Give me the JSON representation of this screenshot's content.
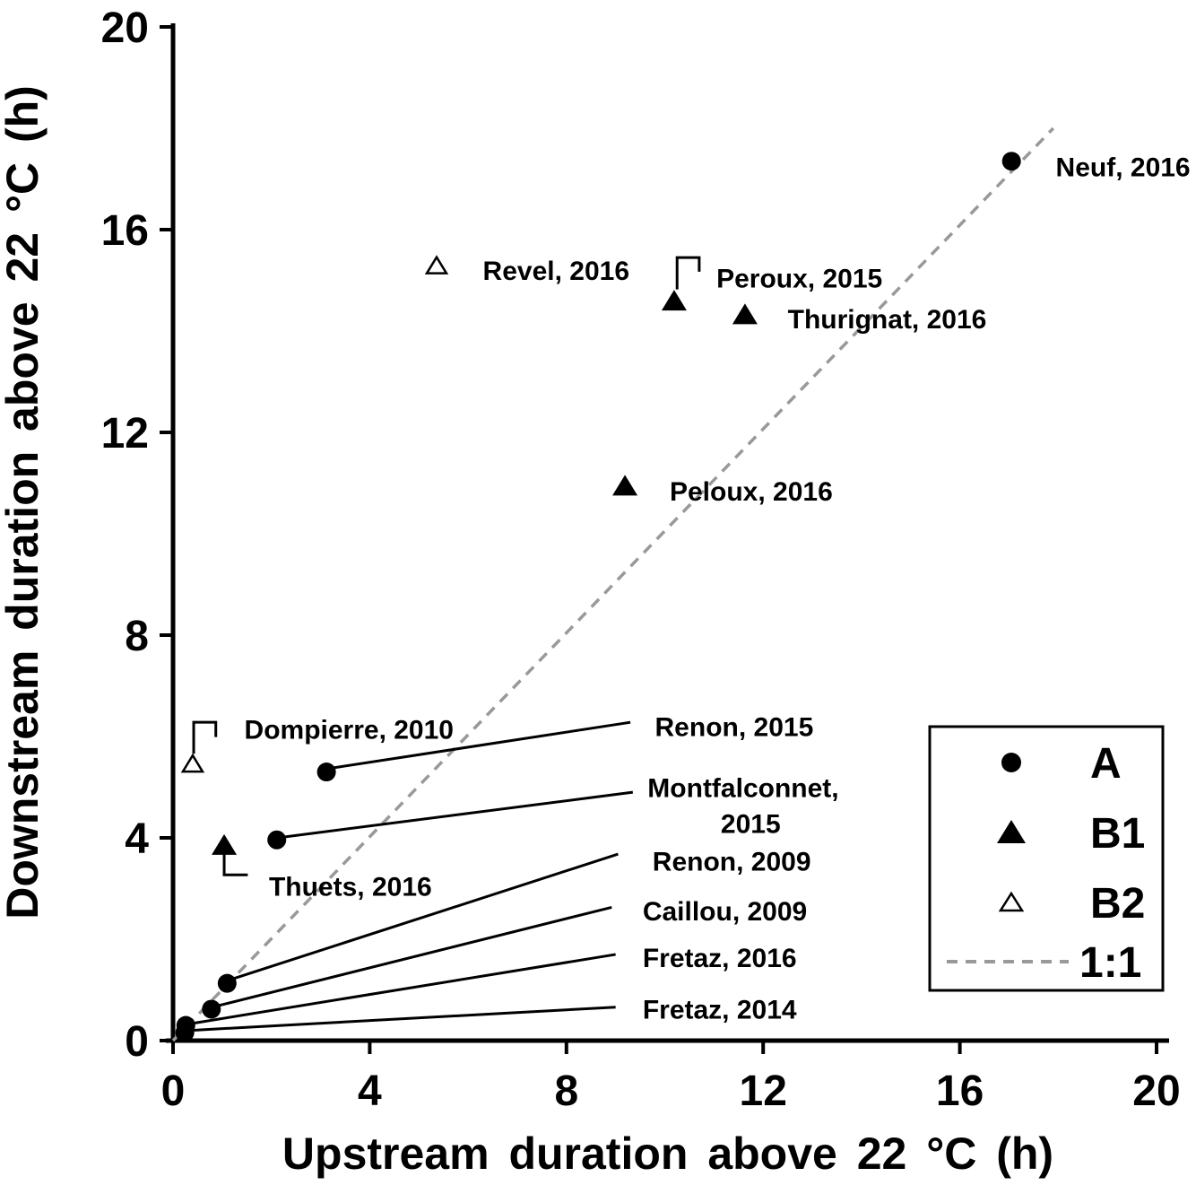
{
  "figure": {
    "background": "#ffffff"
  },
  "chart_data": {
    "type": "scatter",
    "title": "",
    "xlabel": "Upstream duration above 22 °C (h)",
    "ylabel": "Downstream duration above 22 °C (h)",
    "xlim": [
      0,
      20
    ],
    "ylim": [
      0,
      20
    ],
    "xticks": [
      0,
      4,
      8,
      12,
      16,
      20
    ],
    "yticks": [
      0,
      4,
      8,
      12,
      16,
      20
    ],
    "grid": false,
    "colors": {
      "marker": "#000000",
      "identity_line": "#999999",
      "text": "#000000",
      "background": "#ffffff"
    },
    "identity_line": {
      "label": "1:1",
      "from": [
        0,
        0
      ],
      "to": [
        17.9,
        18.0
      ],
      "style": "dashed"
    },
    "series": [
      {
        "name": "A",
        "marker": "circle-filled",
        "points": [
          {
            "x": 17.05,
            "y": 17.35,
            "label": "Neuf, 2016",
            "label_at": [
              17.95,
              17.25
            ],
            "anchor": "start"
          },
          {
            "x": 3.12,
            "y": 5.3,
            "label": "Renon, 2015",
            "label_at": [
              9.8,
              6.2
            ],
            "anchor": "start",
            "leader": [
              [
                3.25,
                5.38
              ],
              [
                9.3,
                6.28
              ]
            ]
          },
          {
            "x": 2.11,
            "y": 3.96,
            "label": "Montfalconnet,",
            "label2": "2015",
            "label_at": [
              9.65,
              5.0
            ],
            "anchor": "start",
            "leader": [
              [
                2.28,
                4.02
              ],
              [
                9.35,
                4.9
              ]
            ]
          },
          {
            "x": 1.1,
            "y": 1.13,
            "label": "Renon, 2009",
            "label_at": [
              9.75,
              3.55
            ],
            "anchor": "start",
            "leader": [
              [
                1.22,
                1.22
              ],
              [
                9.05,
                3.68
              ]
            ]
          },
          {
            "x": 0.78,
            "y": 0.62,
            "label": "Caillou, 2009",
            "label_at": [
              9.55,
              2.57
            ],
            "anchor": "start",
            "leader": [
              [
                0.88,
                0.68
              ],
              [
                8.92,
                2.63
              ]
            ]
          },
          {
            "x": 0.26,
            "y": 0.3,
            "label": "Fretaz, 2016",
            "label_at": [
              9.55,
              1.65
            ],
            "anchor": "start",
            "leader": [
              [
                0.33,
                0.33
              ],
              [
                9.0,
                1.7
              ]
            ]
          },
          {
            "x": 0.24,
            "y": 0.16,
            "label": "Fretaz, 2014",
            "label_at": [
              9.55,
              0.63
            ],
            "anchor": "start",
            "leader": [
              [
                0.33,
                0.2
              ],
              [
                9.0,
                0.66
              ]
            ]
          }
        ]
      },
      {
        "name": "B1",
        "marker": "triangle-filled",
        "points": [
          {
            "x": 10.19,
            "y": 14.6,
            "label": "Peroux, 2015",
            "label_at": [
              11.05,
              15.05
            ],
            "anchor": "start",
            "leader": [
              [
                10.25,
                14.82
              ],
              [
                10.25,
                15.45
              ],
              [
                10.7,
                15.45
              ],
              [
                10.7,
                15.17
              ]
            ]
          },
          {
            "x": 11.63,
            "y": 14.33,
            "label": "Thurignat, 2016",
            "label_at": [
              12.5,
              14.25
            ],
            "anchor": "start"
          },
          {
            "x": 9.19,
            "y": 10.95,
            "label": "Peloux, 2016",
            "label_at": [
              10.1,
              10.85
            ],
            "anchor": "start"
          },
          {
            "x": 1.04,
            "y": 3.86,
            "label": "Thuets, 2016",
            "label_at": [
              1.95,
              3.05
            ],
            "anchor": "start",
            "leader": [
              [
                1.04,
                3.72
              ],
              [
                1.04,
                3.27
              ],
              [
                1.52,
                3.27
              ]
            ]
          }
        ]
      },
      {
        "name": "B2",
        "marker": "triangle-open",
        "points": [
          {
            "x": 5.36,
            "y": 15.28,
            "label": "Revel, 2016",
            "label_at": [
              6.3,
              15.2
            ],
            "anchor": "start"
          },
          {
            "x": 0.4,
            "y": 5.45,
            "label": "Dompierre, 2010",
            "label_at": [
              1.45,
              6.15
            ],
            "anchor": "start",
            "leader": [
              [
                0.42,
                5.66
              ],
              [
                0.42,
                6.28
              ],
              [
                0.87,
                6.28
              ],
              [
                0.87,
                5.99
              ]
            ]
          }
        ]
      }
    ],
    "legend": {
      "position": "lower-right",
      "items": [
        {
          "marker": "circle-filled",
          "label": "A"
        },
        {
          "marker": "triangle-filled",
          "label": "B1"
        },
        {
          "marker": "triangle-open",
          "label": "B2"
        },
        {
          "marker": "dashed-line",
          "label": "1:1"
        }
      ]
    }
  }
}
